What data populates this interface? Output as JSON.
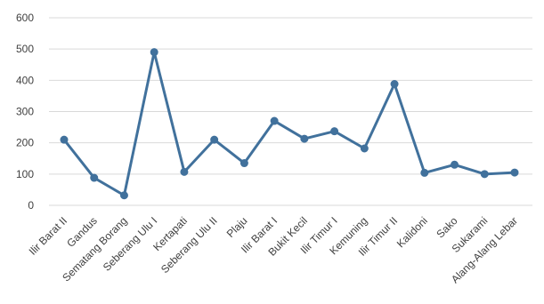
{
  "chart_data": {
    "type": "line",
    "title": "",
    "xlabel": "",
    "ylabel": "",
    "ylim": [
      0,
      600
    ],
    "y_ticks": [
      "0",
      "100",
      "200",
      "300",
      "400",
      "500",
      "600"
    ],
    "grid": true,
    "legend": "none",
    "categories": [
      "Ilir Barat II",
      "Gandus",
      "Sematang Borang",
      "Seberang Ulu I",
      "Kertapati",
      "Seberang Ulu II",
      "Plaju",
      "Ilir Barat I",
      "Bukit Kecil",
      "Ilir Timur I",
      "Kemuning",
      "Ilir Timur II",
      "Kalidoni",
      "Sako",
      "Sukarami",
      "Alang-Alang Lebar"
    ],
    "series": [
      {
        "values": [
          210,
          88,
          32,
          490,
          107,
          210,
          135,
          270,
          213,
          237,
          182,
          388,
          104,
          130,
          100,
          105
        ],
        "color": "#41719c"
      }
    ]
  }
}
